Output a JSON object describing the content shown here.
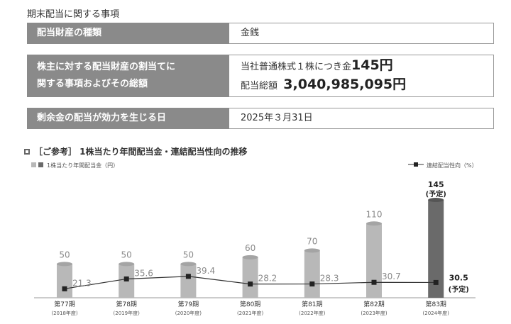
{
  "section_title": "期末配当に関する事項",
  "rows": [
    {
      "label": "配当財産の種類",
      "value": "金銭"
    },
    {
      "label_line1": "株主に対する配当財産の割当てに",
      "label_line2": "関する事項およびその総額",
      "value_line1_prefix": "当社普通株式１株につき金",
      "value_line1_amount": "145円",
      "value_line2_prefix": "配当総額",
      "value_line2_amount": "3,040,985,095円"
    },
    {
      "label": "剰余金の配当が効力を生じる日",
      "value": "2025年３月31日"
    }
  ],
  "chart_heading": "［ご参考］ 1株当たり年間配当金・連結配当性向の推移",
  "colors": {
    "bar": "#b8b8b8",
    "bar_highlight": "#6a6a6a",
    "line": "#333333",
    "marker": "#222222",
    "label_fill": "#8a8a8a"
  },
  "chart_data": {
    "type": "bar+line",
    "categories": [
      {
        "period": "第77期",
        "fy": "(2018年度)"
      },
      {
        "period": "第78期",
        "fy": "(2019年度)"
      },
      {
        "period": "第79期",
        "fy": "(2020年度)"
      },
      {
        "period": "第80期",
        "fy": "(2021年度)"
      },
      {
        "period": "第81期",
        "fy": "(2022年度)"
      },
      {
        "period": "第82期",
        "fy": "(2023年度)"
      },
      {
        "period": "第83期",
        "fy": "(2024年度)"
      }
    ],
    "bar_series": {
      "name": "1株当たり年間配当金（円）",
      "values": [
        50,
        50,
        50,
        60,
        70,
        110,
        145
      ],
      "labels": [
        "50",
        "50",
        "50",
        "60",
        "70",
        "110",
        "145"
      ],
      "highlight_index": 6,
      "note_last": "(予定)"
    },
    "line_series": {
      "name": "連結配当性向（%）",
      "values": [
        21.3,
        35.6,
        39.4,
        28.2,
        28.3,
        30.7,
        30.5
      ],
      "labels": [
        "21.3",
        "35.6",
        "39.4",
        "28.2",
        "28.3",
        "30.7",
        "30.5"
      ],
      "note_last": "(予定)"
    },
    "legend_placement": "top"
  }
}
